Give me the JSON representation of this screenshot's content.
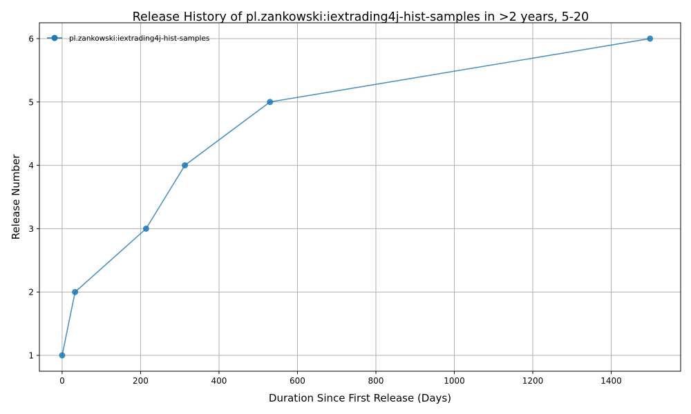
{
  "chart_data": {
    "type": "line",
    "title": "Release History of pl.zankowski:iextrading4j-hist-samples in >2 years, 5-20",
    "xlabel": "Duration Since First Release (Days)",
    "ylabel": "Release Number",
    "xlim": [
      -58,
      1577
    ],
    "ylim": [
      0.75,
      6.25
    ],
    "xticks": [
      0,
      200,
      400,
      600,
      800,
      1000,
      1200,
      1400
    ],
    "yticks": [
      1,
      2,
      3,
      4,
      5,
      6
    ],
    "grid": true,
    "legend": "upper-left",
    "series": [
      {
        "name": "pl.zankowski:iextrading4j-hist-samples",
        "color": "#1f77b4",
        "x": [
          0,
          33,
          214,
          313,
          530,
          1499
        ],
        "y": [
          1,
          2,
          3,
          4,
          5,
          6
        ]
      }
    ]
  }
}
